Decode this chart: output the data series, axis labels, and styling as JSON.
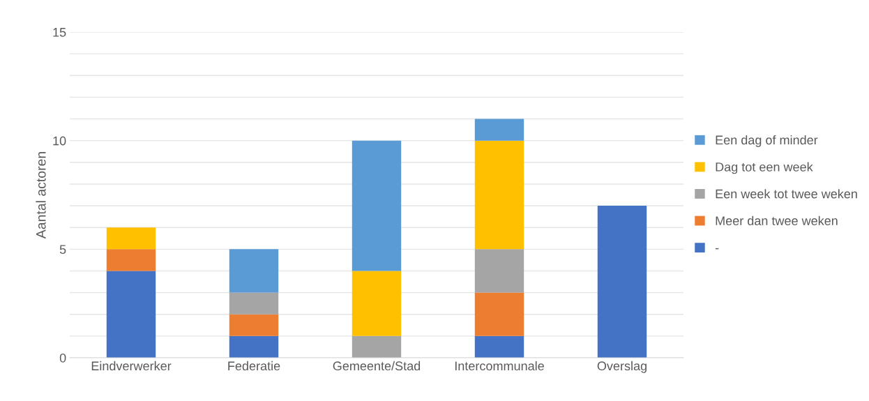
{
  "chart_data": {
    "type": "bar",
    "stacked": true,
    "ylabel": "Aantal actoren",
    "categories": [
      "Eindverwerker",
      "Federatie",
      "Gemeente/Stad",
      "Intercommunale",
      "Overslag"
    ],
    "series": [
      {
        "name": "-",
        "color": "#4472c4",
        "values": [
          4,
          1,
          0,
          1,
          7
        ]
      },
      {
        "name": "Meer dan twee weken",
        "color": "#ed7d31",
        "values": [
          1,
          1,
          0,
          2,
          0
        ]
      },
      {
        "name": "Een week tot twee weken",
        "color": "#a5a5a5",
        "values": [
          0,
          1,
          1,
          2,
          0
        ]
      },
      {
        "name": "Dag tot een week",
        "color": "#ffc000",
        "values": [
          1,
          0,
          3,
          5,
          0
        ]
      },
      {
        "name": "Een dag of minder",
        "color": "#5b9bd5",
        "values": [
          0,
          2,
          6,
          1,
          0
        ]
      }
    ],
    "ylim": [
      0,
      15
    ],
    "yticks": [
      0,
      {
        "value": 1,
        "label": null
      },
      {
        "value": 2,
        "label": null
      },
      {
        "value": 3,
        "label": null
      },
      {
        "value": 4,
        "label": null
      },
      5,
      {
        "value": 6,
        "label": null
      },
      {
        "value": 7,
        "label": null
      },
      {
        "value": 8,
        "label": null
      },
      {
        "value": 9,
        "label": null
      },
      10,
      {
        "value": 11,
        "label": null
      },
      {
        "value": 12,
        "label": null
      },
      {
        "value": 13,
        "label": null
      },
      {
        "value": 14,
        "label": null
      },
      15
    ],
    "grid": "y",
    "legend": "right"
  }
}
